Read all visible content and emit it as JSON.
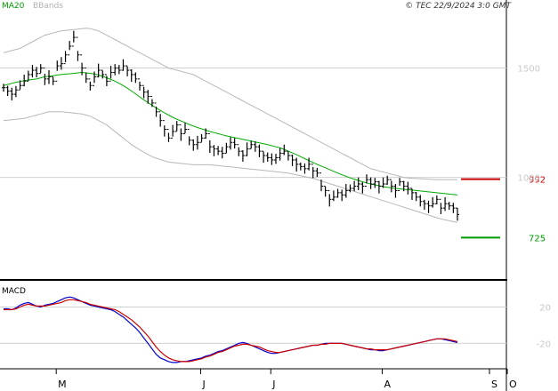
{
  "chart_data": [
    {
      "type": "line",
      "panel": "price",
      "legend": {
        "ma": "MA20",
        "bands": "BBands"
      },
      "copyright": "© TEC 22/9/2024 3:0 GMT",
      "y_ticks": [
        1500,
        1000
      ],
      "y_tick_labels": [
        "1500",
        "1000"
      ],
      "ylim": [
        560,
        1750
      ],
      "grid": true,
      "levels": [
        {
          "value": "992",
          "price": 992,
          "color": "#cc0000"
        },
        {
          "value": "725",
          "price": 725,
          "color": "#009900"
        }
      ],
      "x_labels": [
        "M",
        "J",
        "J",
        "A",
        "S",
        "O"
      ],
      "x_label_index": [
        5,
        40,
        57,
        84,
        110,
        140
      ],
      "ohlc_close": [
        1410,
        1395,
        1380,
        1400,
        1420,
        1440,
        1470,
        1490,
        1475,
        1500,
        1450,
        1460,
        1440,
        1510,
        1520,
        1560,
        1600,
        1640,
        1560,
        1500,
        1450,
        1420,
        1460,
        1490,
        1470,
        1440,
        1480,
        1500,
        1490,
        1510,
        1490,
        1470,
        1450,
        1420,
        1390,
        1370,
        1340,
        1300,
        1260,
        1220,
        1180,
        1210,
        1240,
        1200,
        1220,
        1170,
        1150,
        1160,
        1180,
        1200,
        1140,
        1130,
        1120,
        1110,
        1140,
        1160,
        1150,
        1120,
        1100,
        1130,
        1150,
        1140,
        1120,
        1100,
        1090,
        1080,
        1090,
        1110,
        1120,
        1100,
        1080,
        1060,
        1050,
        1040,
        1060,
        1030,
        1020,
        960,
        940,
        900,
        910,
        930,
        920,
        940,
        950,
        960,
        970,
        960,
        990,
        970,
        980,
        960,
        970,
        990,
        960,
        940,
        980,
        960,
        950,
        930,
        910,
        890,
        880,
        870,
        880,
        900,
        860,
        880,
        870,
        860,
        830
      ],
      "ma20": [
        1420,
        1425,
        1430,
        1435,
        1438,
        1442,
        1445,
        1448,
        1450,
        1455,
        1460,
        1462,
        1465,
        1468,
        1470,
        1472,
        1474,
        1476,
        1478,
        1480,
        1478,
        1476,
        1472,
        1468,
        1462,
        1455,
        1448,
        1440,
        1430,
        1420,
        1408,
        1395,
        1382,
        1368,
        1355,
        1342,
        1330,
        1318,
        1306,
        1295,
        1285,
        1275,
        1266,
        1258,
        1250,
        1242,
        1235,
        1228,
        1222,
        1216,
        1210,
        1205,
        1200,
        1195,
        1190,
        1186,
        1182,
        1178,
        1174,
        1170,
        1166,
        1162,
        1158,
        1154,
        1150,
        1145,
        1140,
        1135,
        1128,
        1120,
        1112,
        1104,
        1095,
        1086,
        1077,
        1068,
        1060,
        1052,
        1044,
        1036,
        1028,
        1020,
        1012,
        1005,
        998,
        992,
        986,
        980,
        975,
        970,
        966,
        962,
        958,
        955,
        952,
        950,
        948,
        946,
        944,
        942,
        940,
        938,
        936,
        934,
        932,
        930,
        928,
        926,
        924,
        922,
        920
      ],
      "bb_upper": [
        1570,
        1575,
        1580,
        1585,
        1590,
        1600,
        1610,
        1620,
        1630,
        1640,
        1650,
        1655,
        1660,
        1665,
        1670,
        1672,
        1674,
        1676,
        1678,
        1680,
        1682,
        1680,
        1675,
        1670,
        1660,
        1650,
        1640,
        1630,
        1620,
        1610,
        1600,
        1590,
        1580,
        1570,
        1560,
        1550,
        1540,
        1530,
        1520,
        1510,
        1500,
        1495,
        1490,
        1485,
        1480,
        1475,
        1470,
        1460,
        1450,
        1440,
        1430,
        1420,
        1410,
        1400,
        1390,
        1380,
        1370,
        1360,
        1350,
        1340,
        1330,
        1320,
        1310,
        1300,
        1290,
        1280,
        1270,
        1260,
        1250,
        1240,
        1230,
        1220,
        1210,
        1200,
        1190,
        1180,
        1170,
        1160,
        1150,
        1140,
        1130,
        1120,
        1110,
        1100,
        1090,
        1080,
        1070,
        1060,
        1050,
        1040,
        1035,
        1030,
        1025,
        1020,
        1015,
        1010,
        1005,
        1000,
        998,
        996,
        995,
        994,
        993,
        992,
        991,
        990,
        990,
        990,
        990,
        990,
        990
      ],
      "bb_lower": [
        1260,
        1262,
        1264,
        1266,
        1268,
        1270,
        1275,
        1280,
        1285,
        1290,
        1295,
        1300,
        1300,
        1300,
        1300,
        1298,
        1296,
        1294,
        1292,
        1290,
        1285,
        1280,
        1270,
        1260,
        1250,
        1240,
        1225,
        1210,
        1195,
        1180,
        1165,
        1150,
        1138,
        1126,
        1115,
        1105,
        1095,
        1088,
        1082,
        1076,
        1070,
        1068,
        1066,
        1064,
        1062,
        1060,
        1058,
        1058,
        1058,
        1058,
        1058,
        1056,
        1054,
        1052,
        1050,
        1048,
        1046,
        1044,
        1042,
        1040,
        1038,
        1036,
        1034,
        1032,
        1030,
        1028,
        1026,
        1024,
        1022,
        1020,
        1016,
        1012,
        1008,
        1004,
        1000,
        996,
        990,
        984,
        978,
        972,
        966,
        960,
        954,
        948,
        942,
        936,
        930,
        924,
        918,
        912,
        906,
        900,
        894,
        888,
        882,
        876,
        870,
        864,
        858,
        852,
        846,
        840,
        834,
        828,
        822,
        816,
        810,
        806,
        802,
        798,
        794
      ]
    },
    {
      "type": "line",
      "panel": "macd",
      "title": "MACD",
      "y_ticks": [
        20,
        -20
      ],
      "y_tick_labels": [
        "20",
        "-20"
      ],
      "ylim": [
        -45,
        40
      ],
      "grid": true,
      "series": [
        {
          "name": "",
          "color": "#0000cc",
          "values": [
            18,
            18,
            17,
            19,
            22,
            24,
            25,
            23,
            21,
            20,
            22,
            23,
            24,
            26,
            28,
            30,
            31,
            30,
            28,
            26,
            24,
            22,
            21,
            20,
            19,
            18,
            17,
            15,
            12,
            9,
            5,
            1,
            -3,
            -8,
            -14,
            -20,
            -26,
            -32,
            -36,
            -38,
            -40,
            -41,
            -41,
            -40,
            -40,
            -39,
            -38,
            -37,
            -36,
            -34,
            -33,
            -31,
            -29,
            -28,
            -26,
            -24,
            -22,
            -20,
            -19,
            -20,
            -22,
            -24,
            -26,
            -28,
            -30,
            -31,
            -31,
            -30,
            -29,
            -28,
            -27,
            -26,
            -25,
            -24,
            -23,
            -22,
            -22,
            -21,
            -20,
            -20,
            -20,
            -20,
            -20,
            -21,
            -22,
            -23,
            -24,
            -25,
            -26,
            -27,
            -27,
            -28,
            -28,
            -27,
            -26,
            -25,
            -24,
            -23,
            -22,
            -21,
            -20,
            -19,
            -18,
            -17,
            -16,
            -15,
            -15,
            -16,
            -17,
            -18,
            -19
          ]
        },
        {
          "name": "",
          "color": "#cc0000",
          "values": [
            17,
            17,
            17,
            18,
            20,
            22,
            23,
            22,
            21,
            21,
            21,
            22,
            23,
            24,
            25,
            27,
            28,
            28,
            27,
            26,
            25,
            23,
            22,
            21,
            20,
            19,
            18,
            17,
            15,
            12,
            9,
            6,
            2,
            -2,
            -7,
            -12,
            -18,
            -24,
            -29,
            -33,
            -36,
            -38,
            -39,
            -40,
            -40,
            -40,
            -39,
            -38,
            -37,
            -35,
            -34,
            -32,
            -30,
            -29,
            -27,
            -25,
            -23,
            -22,
            -21,
            -21,
            -22,
            -23,
            -24,
            -26,
            -28,
            -29,
            -30,
            -30,
            -29,
            -28,
            -27,
            -26,
            -25,
            -24,
            -23,
            -22,
            -22,
            -21,
            -21,
            -20,
            -20,
            -20,
            -20,
            -21,
            -22,
            -23,
            -24,
            -25,
            -26,
            -26,
            -27,
            -27,
            -27,
            -27,
            -26,
            -25,
            -24,
            -23,
            -22,
            -21,
            -20,
            -19,
            -18,
            -17,
            -16,
            -15,
            -15,
            -15,
            -16,
            -17,
            -18
          ]
        }
      ]
    }
  ]
}
